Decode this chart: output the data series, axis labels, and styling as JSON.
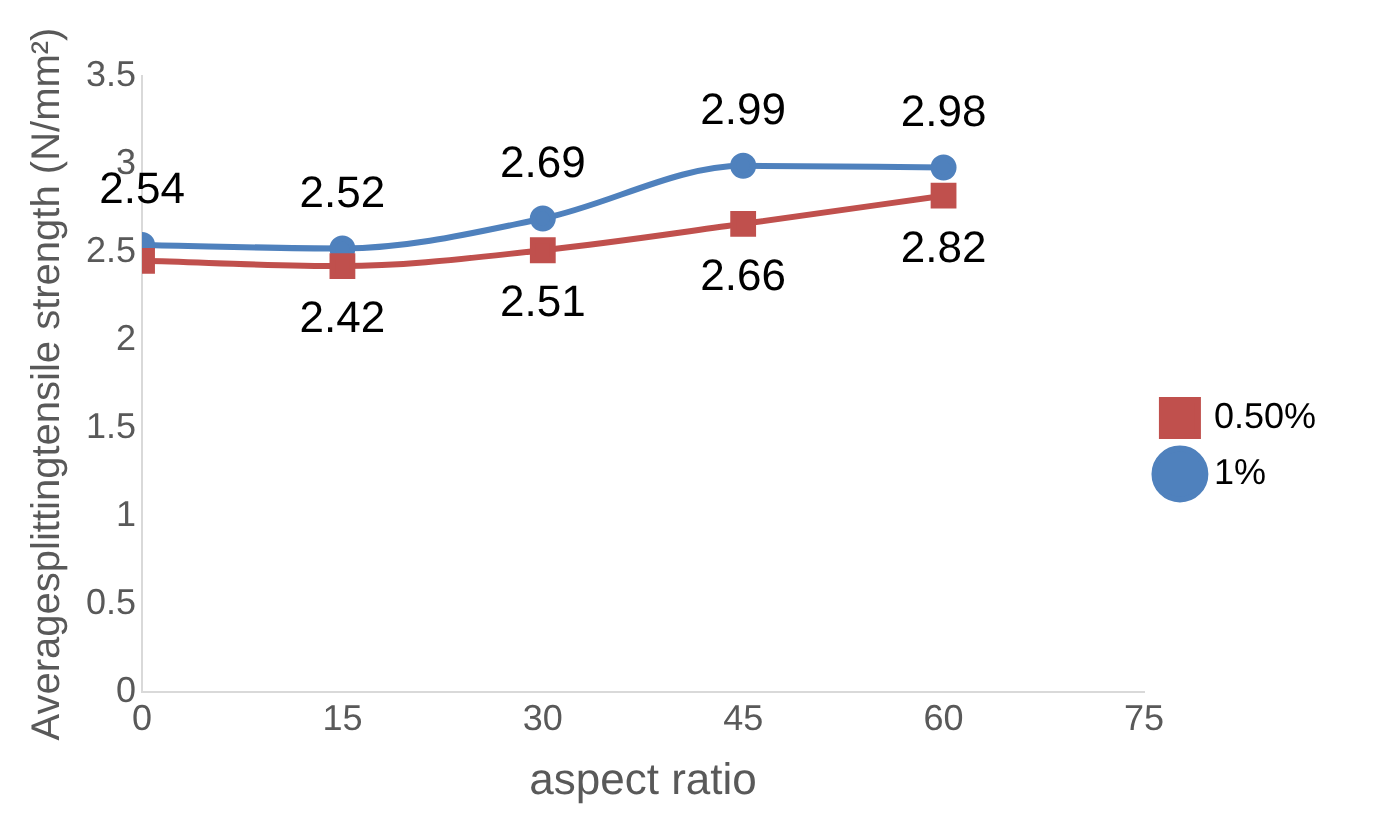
{
  "chart_data": {
    "type": "line",
    "xlabel": "aspect ratio",
    "ylabel": "Averagesplittingtensile strength (N/mm²)",
    "x": [
      0,
      15,
      30,
      45,
      60
    ],
    "xlim": [
      0,
      75
    ],
    "xticks": [
      0,
      15,
      30,
      45,
      60,
      75
    ],
    "ylim": [
      0,
      3.5
    ],
    "yticks": [
      0,
      0.5,
      1,
      1.5,
      2,
      2.5,
      3,
      3.5
    ],
    "grid": false,
    "legend": "right",
    "line_style": "solid",
    "series": [
      {
        "name": "0.50%",
        "color": "#c0504d",
        "marker": "square",
        "values": [
          2.45,
          2.42,
          2.51,
          2.66,
          2.82
        ],
        "value_labels": [
          null,
          "2.42",
          "2.51",
          "2.66",
          "2.82"
        ]
      },
      {
        "name": "1%",
        "color": "#4f81bd",
        "marker": "circle",
        "values": [
          2.54,
          2.52,
          2.69,
          2.99,
          2.98
        ],
        "value_labels": [
          "2.54",
          "2.52",
          "2.69",
          "2.99",
          "2.98"
        ]
      }
    ]
  }
}
